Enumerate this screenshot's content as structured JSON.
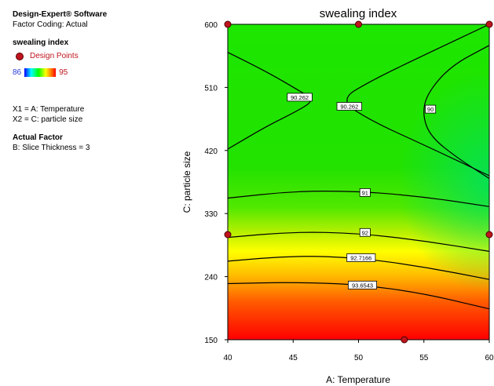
{
  "side_panel": {
    "software": "Design-Expert® Software",
    "coding": "Factor Coding: Actual",
    "response_title": "swealing index",
    "design_points_label": "Design Points",
    "scale_low": "86",
    "scale_high": "95",
    "x1_def": "X1 = A: Temperature",
    "x2_def": "X2 = C: particle size",
    "actual_factor_title": "Actual Factor",
    "actual_factor_value": "B: Slice Thickness = 3"
  },
  "colors": {
    "design_point": "#c0141e",
    "contour_line": "#000000",
    "axis": "#000000"
  },
  "chart_data": {
    "type": "contour",
    "title": "swealing index",
    "xlabel": "A: Temperature",
    "ylabel": "C: particle size",
    "xlim": [
      40,
      60
    ],
    "ylim": [
      150,
      600
    ],
    "x_ticks": [
      "40",
      "45",
      "50",
      "55",
      "60"
    ],
    "y_ticks": [
      "150",
      "240",
      "330",
      "420",
      "510",
      "600"
    ],
    "grid": false,
    "color_scale": {
      "min": 86,
      "max": 95
    },
    "contours": [
      {
        "label": "90.262",
        "points": [
          [
            40,
            560
          ],
          [
            43,
            532
          ],
          [
            45.5,
            505
          ],
          [
            46.6,
            492
          ],
          [
            45.5,
            478
          ],
          [
            43,
            455
          ],
          [
            40,
            422
          ]
        ],
        "label_at": [
          45.5,
          496
        ]
      },
      {
        "label": "90.262",
        "points": [
          [
            60,
            600
          ],
          [
            55,
            556
          ],
          [
            51,
            520
          ],
          [
            48.5,
            492
          ],
          [
            51,
            462
          ],
          [
            55,
            428
          ],
          [
            60,
            384
          ]
        ],
        "label_at": [
          49.3,
          483
        ]
      },
      {
        "label": "90",
        "points": [
          [
            60,
            570
          ],
          [
            57,
            540
          ],
          [
            55.2,
            500
          ],
          [
            54.9,
            470
          ],
          [
            55.5,
            440
          ],
          [
            57.5,
            410
          ],
          [
            60,
            380
          ]
        ],
        "label_at": [
          55.5,
          479
        ]
      },
      {
        "label": "91",
        "points": [
          [
            40,
            352
          ],
          [
            45,
            362
          ],
          [
            50,
            362
          ],
          [
            55,
            354
          ],
          [
            60,
            340
          ]
        ],
        "label_at": [
          50.5,
          360
        ]
      },
      {
        "label": "92",
        "points": [
          [
            40,
            296
          ],
          [
            45,
            304
          ],
          [
            50,
            302
          ],
          [
            55,
            291
          ],
          [
            60,
            276
          ]
        ],
        "label_at": [
          50.5,
          303
        ]
      },
      {
        "label": "92.7166",
        "points": [
          [
            40,
            262
          ],
          [
            45,
            270
          ],
          [
            50,
            267
          ],
          [
            55,
            254
          ],
          [
            60,
            236
          ]
        ],
        "label_at": [
          50.2,
          267
        ]
      },
      {
        "label": "93.6543",
        "points": [
          [
            40,
            230
          ],
          [
            45,
            232
          ],
          [
            50,
            229
          ],
          [
            55,
            216
          ],
          [
            60,
            194
          ]
        ],
        "label_at": [
          50.3,
          228
        ]
      }
    ],
    "design_points": [
      {
        "x": 40,
        "y": 600
      },
      {
        "x": 50,
        "y": 600
      },
      {
        "x": 60,
        "y": 600
      },
      {
        "x": 40,
        "y": 300
      },
      {
        "x": 60,
        "y": 300
      },
      {
        "x": 53.5,
        "y": 150
      }
    ]
  }
}
